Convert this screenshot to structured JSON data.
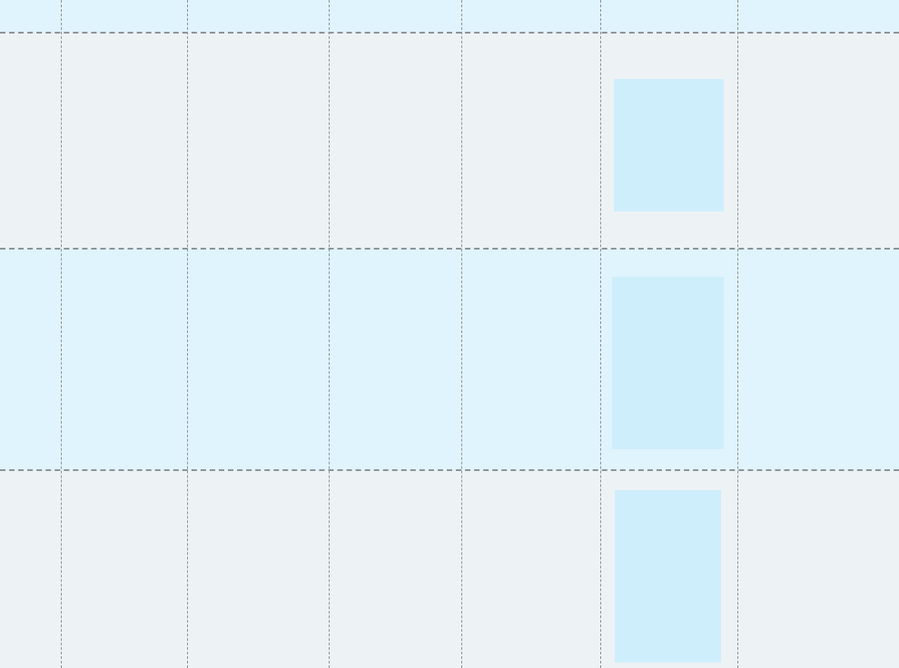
{
  "colors": {
    "background": "#edf2f5",
    "band": "#e0f4fd",
    "event_block": "#cfeefc",
    "grid_line": "#8d9499"
  },
  "calendar": {
    "column_count": 7,
    "row_count": 3,
    "event_blocks": 3
  }
}
